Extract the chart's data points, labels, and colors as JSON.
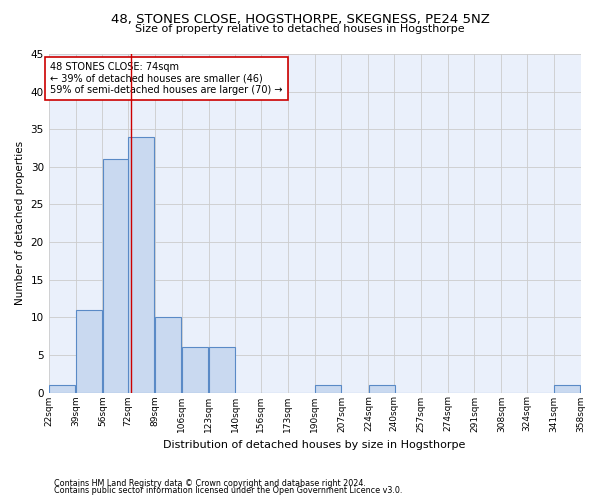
{
  "title": "48, STONES CLOSE, HOGSTHORPE, SKEGNESS, PE24 5NZ",
  "subtitle": "Size of property relative to detached houses in Hogsthorpe",
  "xlabel": "Distribution of detached houses by size in Hogsthorpe",
  "ylabel": "Number of detached properties",
  "footnote1": "Contains HM Land Registry data © Crown copyright and database right 2024.",
  "footnote2": "Contains public sector information licensed under the Open Government Licence v3.0.",
  "bar_left_edges": [
    22,
    39,
    56,
    72,
    89,
    106,
    123,
    140,
    156,
    173,
    190,
    207,
    224,
    240,
    257,
    274,
    291,
    308,
    324,
    341
  ],
  "bar_heights": [
    1,
    11,
    31,
    34,
    10,
    6,
    6,
    0,
    0,
    0,
    1,
    0,
    1,
    0,
    0,
    0,
    0,
    0,
    0,
    1
  ],
  "bin_width": 17,
  "bar_color": "#c9d9f0",
  "bar_edge_color": "#5a8ac6",
  "grid_color": "#cccccc",
  "bg_color": "#eaf0fb",
  "vline_x": 74,
  "vline_color": "#cc0000",
  "annotation_text": "48 STONES CLOSE: 74sqm\n← 39% of detached houses are smaller (46)\n59% of semi-detached houses are larger (70) →",
  "annotation_box_color": "#cc0000",
  "ylim": [
    0,
    45
  ],
  "yticks": [
    0,
    5,
    10,
    15,
    20,
    25,
    30,
    35,
    40,
    45
  ],
  "x_tick_labels": [
    "22sqm",
    "39sqm",
    "56sqm",
    "72sqm",
    "89sqm",
    "106sqm",
    "123sqm",
    "140sqm",
    "156sqm",
    "173sqm",
    "190sqm",
    "207sqm",
    "224sqm",
    "240sqm",
    "257sqm",
    "274sqm",
    "291sqm",
    "308sqm",
    "324sqm",
    "341sqm",
    "358sqm"
  ]
}
